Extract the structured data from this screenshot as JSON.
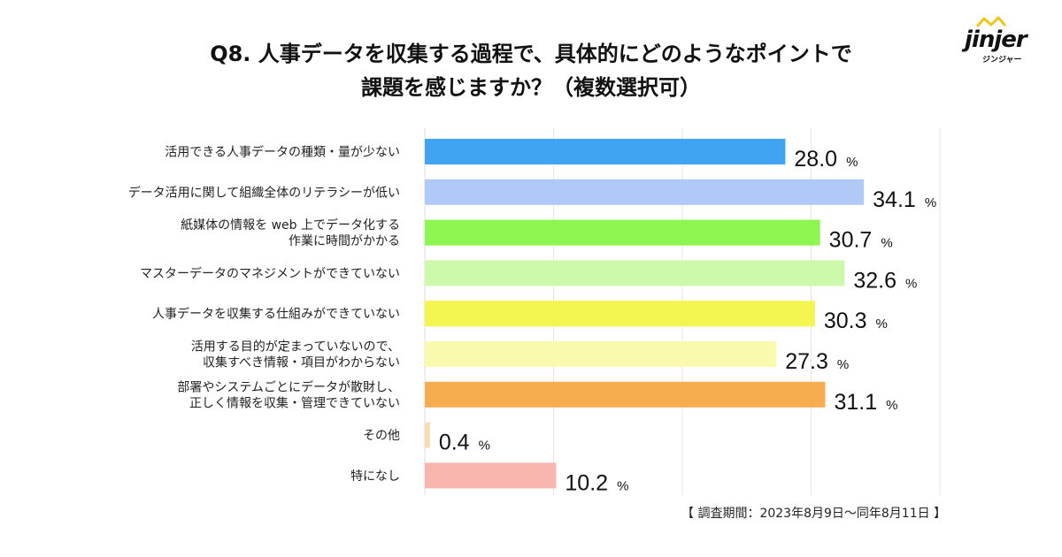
{
  "title_lines": [
    "Q8. 人事データを収集する過程で、具体的にどのようなポイントで",
    "課題を感じますか？（複数選択可）"
  ],
  "logo": {
    "word": "jinjer",
    "sub": "ジンジャー"
  },
  "note": "【 調査期間：2023年8月9日〜同年8月11日 】",
  "chart_data": {
    "type": "bar",
    "orientation": "horizontal",
    "unit": "%",
    "xlim": [
      0,
      40
    ],
    "grid": true,
    "categories": [
      [
        "活用できる人事データの種類・量が少ない"
      ],
      [
        "データ活用に関して組織全体のリテラシーが低い"
      ],
      [
        "紙媒体の情報を web 上でデータ化する",
        "作業に時間がかかる"
      ],
      [
        "マスターデータのマネジメントができていない"
      ],
      [
        "人事データを収集する仕組みができていない"
      ],
      [
        "活用する目的が定まっていないので、",
        "収集すべき情報・項目がわからない"
      ],
      [
        "部署やシステムごとにデータが散財し、",
        "正しく情報を収集・管理できていない"
      ],
      [
        "その他"
      ],
      [
        "特になし"
      ]
    ],
    "values": [
      28.0,
      34.1,
      30.7,
      32.6,
      30.3,
      27.3,
      31.1,
      0.4,
      10.2
    ],
    "colors": [
      "#41a4f3",
      "#b0c9f7",
      "#8df650",
      "#ccfaaa",
      "#f5f552",
      "#fafaae",
      "#f5ad50",
      "#fadcb0",
      "#f7b5ae"
    ]
  }
}
